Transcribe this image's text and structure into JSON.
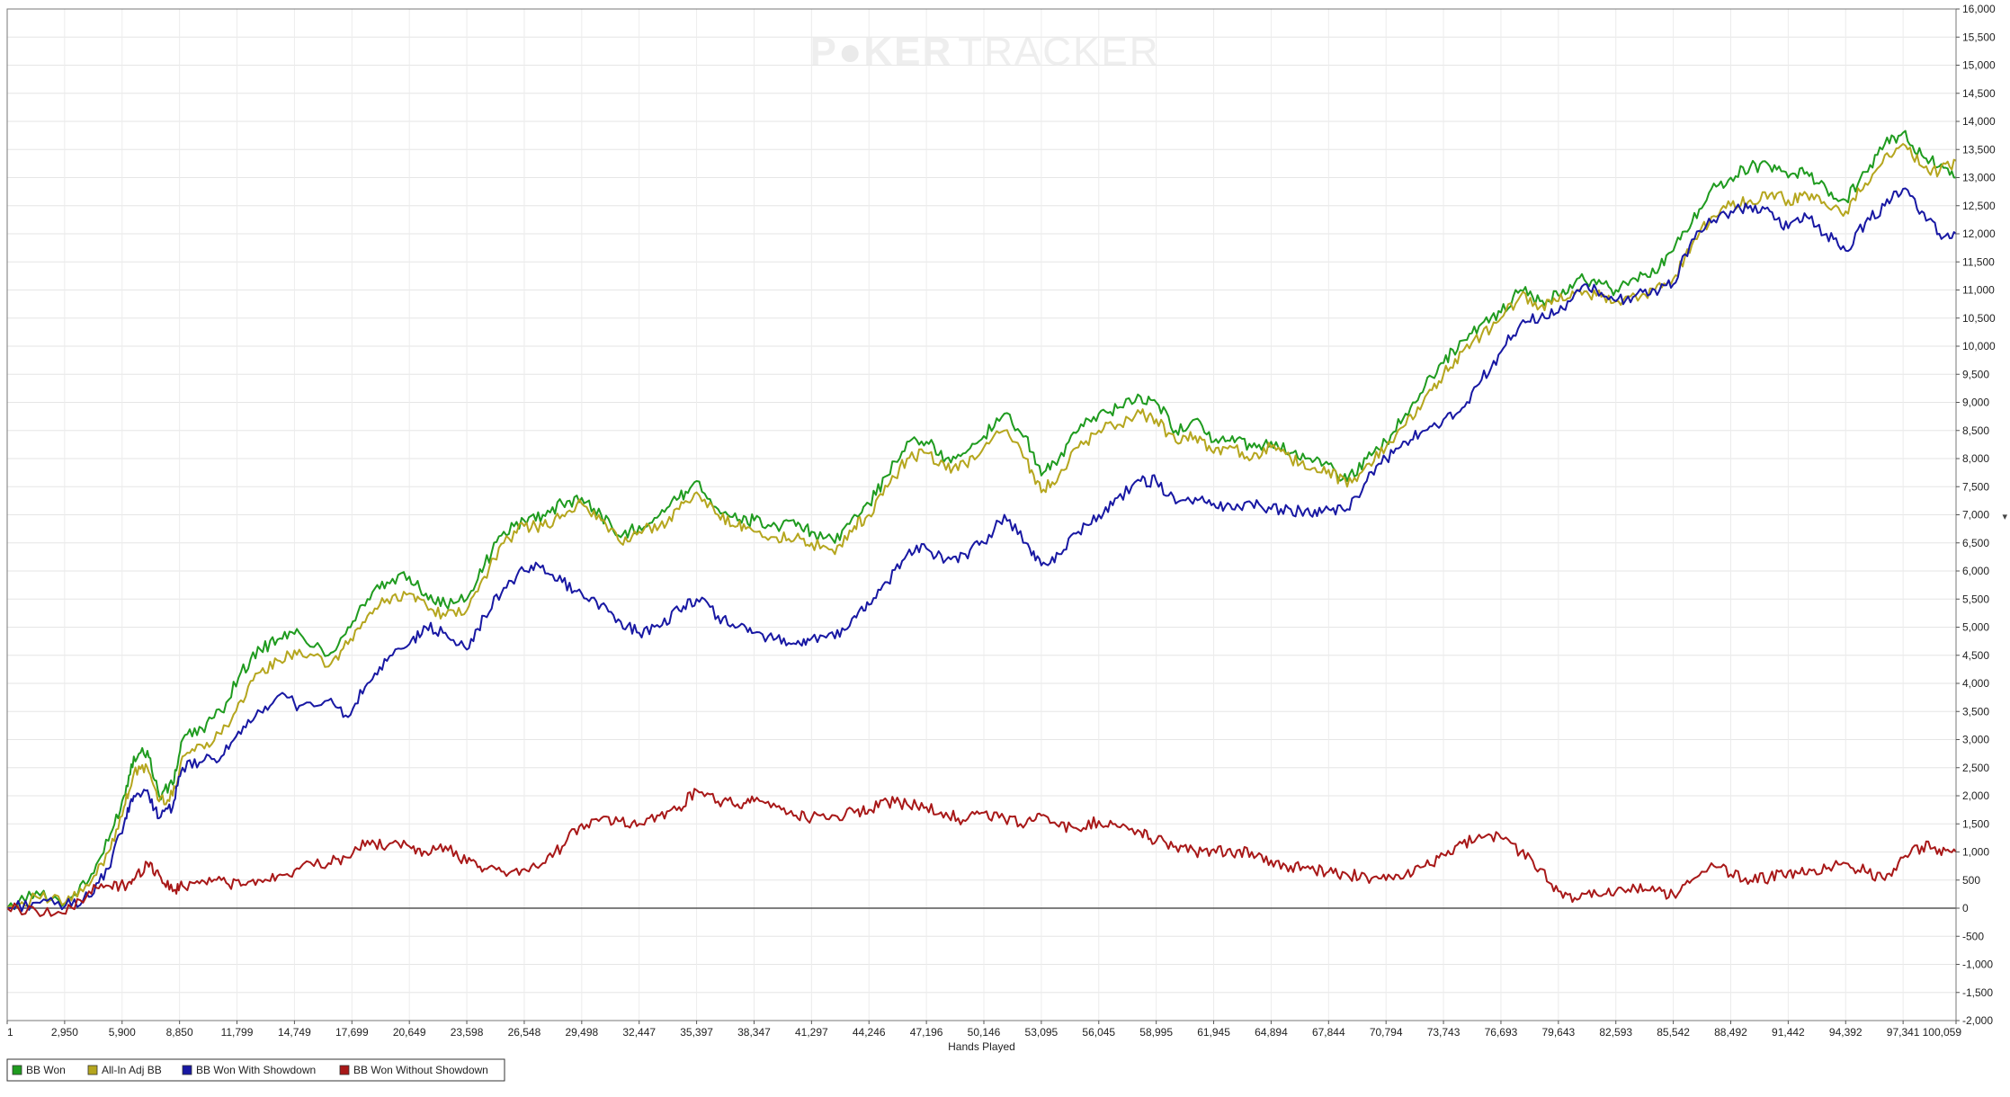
{
  "watermark": {
    "part1": "P",
    "part2": "KER",
    "part3": "TRACKER"
  },
  "chart_data": {
    "type": "line",
    "xlabel": "Hands Played",
    "ylabel": "",
    "xlim": [
      1,
      100059
    ],
    "ylim": [
      -2000,
      16000
    ],
    "y_ticks": [
      -2000,
      -1500,
      -1000,
      -500,
      0,
      500,
      1000,
      1500,
      2000,
      2500,
      3000,
      3500,
      4000,
      4500,
      5000,
      5500,
      6000,
      6500,
      7000,
      7500,
      8000,
      8500,
      9000,
      9500,
      10000,
      10500,
      11000,
      11500,
      12000,
      12500,
      13000,
      13500,
      14000,
      14500,
      15000,
      15500,
      16000
    ],
    "y_tick_labels": [
      "-2,000",
      "-1,500",
      "-1,000",
      "-500",
      "0",
      "500",
      "1,000",
      "1,500",
      "2,000",
      "2,500",
      "3,000",
      "3,500",
      "4,000",
      "4,500",
      "5,000",
      "5,500",
      "6,000",
      "6,500",
      "7,000",
      "7,500",
      "8,000",
      "8,500",
      "9,000",
      "9,500",
      "10,000",
      "10,500",
      "11,000",
      "11,500",
      "12,000",
      "12,500",
      "13,000",
      "13,500",
      "14,000",
      "14,500",
      "15,000",
      "15,500",
      "16,000"
    ],
    "x_ticks": [
      1,
      2950,
      5900,
      8850,
      11799,
      14749,
      17699,
      20649,
      23598,
      26548,
      29498,
      32447,
      35397,
      38347,
      41297,
      44246,
      47196,
      50146,
      53095,
      56045,
      58995,
      61945,
      64894,
      67844,
      70794,
      73743,
      76693,
      79643,
      82593,
      85542,
      88492,
      91442,
      94392,
      97341,
      100059
    ],
    "x_tick_labels": [
      "1",
      "2,950",
      "5,900",
      "8,850",
      "11,799",
      "14,749",
      "17,699",
      "20,649",
      "23,598",
      "26,548",
      "29,498",
      "32,447",
      "35,397",
      "38,347",
      "41,297",
      "44,246",
      "47,196",
      "50,146",
      "53,095",
      "56,045",
      "58,995",
      "61,945",
      "64,894",
      "67,844",
      "70,794",
      "73,743",
      "76,693",
      "79,643",
      "82,593",
      "85,542",
      "88,492",
      "91,442",
      "94,392",
      "97,341",
      "100,059"
    ],
    "grid": true,
    "legend_position": "bottom-left",
    "series": [
      {
        "name": "BB Won",
        "color": "#1f9b1f",
        "x": [
          1,
          1500,
          3000,
          4200,
          5200,
          6000,
          6500,
          7200,
          7800,
          8500,
          9000,
          10000,
          11000,
          12000,
          13000,
          14000,
          15000,
          16500,
          17500,
          18500,
          19500,
          20649,
          21500,
          22500,
          23598,
          24500,
          25500,
          26548,
          27500,
          28500,
          29498,
          30500,
          31500,
          32447,
          33500,
          34500,
          35397,
          36500,
          37500,
          38347,
          39500,
          40500,
          41297,
          42500,
          43500,
          44246,
          45200,
          46200,
          47196,
          48200,
          49200,
          50146,
          51200,
          52300,
          53095,
          54000,
          55000,
          56045,
          57000,
          58200,
          58995,
          60000,
          61000,
          61945,
          62900,
          63900,
          64894,
          65900,
          66900,
          67844,
          68800,
          69800,
          70794,
          71800,
          72800,
          73743,
          74700,
          75700,
          76693,
          77700,
          78700,
          79643,
          80600,
          81600,
          82593,
          83600,
          84600,
          85542,
          86500,
          87500,
          88492,
          89500,
          90500,
          91442,
          92400,
          93400,
          94392,
          95400,
          96400,
          97341,
          98300,
          99200,
          100059
        ],
        "y": [
          0,
          300,
          100,
          500,
          1200,
          2000,
          2700,
          2800,
          2000,
          2200,
          3000,
          3200,
          3500,
          4200,
          4600,
          4800,
          4900,
          4500,
          5000,
          5500,
          5800,
          5900,
          5600,
          5400,
          5500,
          6100,
          6700,
          6900,
          7000,
          7200,
          7300,
          7000,
          6600,
          6800,
          7000,
          7300,
          7600,
          7100,
          6900,
          6900,
          6800,
          6800,
          6700,
          6500,
          7000,
          7200,
          7700,
          8300,
          8300,
          8000,
          8100,
          8400,
          8800,
          8400,
          7700,
          8000,
          8500,
          8800,
          8900,
          9100,
          9000,
          8500,
          8700,
          8300,
          8400,
          8200,
          8300,
          8100,
          8000,
          7900,
          7600,
          8000,
          8300,
          8800,
          9300,
          9700,
          10100,
          10400,
          10600,
          11000,
          10800,
          10900,
          11200,
          11100,
          11000,
          11200,
          11300,
          11700,
          12200,
          12800,
          13000,
          13200,
          13200,
          13000,
          13100,
          12800,
          12600,
          13100,
          13600,
          13800,
          13400,
          13200,
          13000
        ]
      },
      {
        "name": "All-In Adj BB",
        "color": "#b5a61e",
        "x": [
          1,
          1500,
          3000,
          4200,
          5200,
          6000,
          6500,
          7200,
          7800,
          8500,
          9000,
          10000,
          11000,
          12000,
          13000,
          14000,
          15000,
          16500,
          17500,
          18500,
          19500,
          20649,
          21500,
          22500,
          23598,
          24500,
          25500,
          26548,
          27500,
          28500,
          29498,
          30500,
          31500,
          32447,
          33500,
          34500,
          35397,
          36500,
          37500,
          38347,
          39500,
          40500,
          41297,
          42500,
          43500,
          44246,
          45200,
          46200,
          47196,
          48200,
          49200,
          50146,
          51200,
          52300,
          53095,
          54000,
          55000,
          56045,
          57000,
          58200,
          58995,
          60000,
          61000,
          61945,
          62900,
          63900,
          64894,
          65900,
          66900,
          67844,
          68800,
          69800,
          70794,
          71800,
          72800,
          73743,
          74700,
          75700,
          76693,
          77700,
          78700,
          79643,
          80600,
          81600,
          82593,
          83600,
          84600,
          85542,
          86500,
          87500,
          88492,
          89500,
          90500,
          91442,
          92400,
          93400,
          94392,
          95400,
          96400,
          97341,
          98300,
          99200,
          100059
        ],
        "y": [
          0,
          200,
          100,
          400,
          1000,
          1800,
          2400,
          2500,
          1900,
          2000,
          2700,
          2900,
          3100,
          3700,
          4200,
          4400,
          4600,
          4300,
          4700,
          5200,
          5500,
          5600,
          5400,
          5200,
          5300,
          5900,
          6500,
          6800,
          6800,
          7000,
          7200,
          6900,
          6500,
          6700,
          6800,
          7100,
          7400,
          7000,
          6800,
          6700,
          6600,
          6600,
          6500,
          6300,
          6800,
          7000,
          7500,
          8000,
          8100,
          7800,
          7900,
          8200,
          8500,
          8000,
          7400,
          7700,
          8200,
          8500,
          8600,
          8800,
          8700,
          8300,
          8400,
          8100,
          8200,
          8000,
          8200,
          8000,
          7800,
          7800,
          7500,
          7900,
          8200,
          8600,
          9100,
          9500,
          9900,
          10200,
          10500,
          10900,
          10700,
          10800,
          11000,
          10900,
          10800,
          10900,
          11000,
          11200,
          11800,
          12300,
          12500,
          12600,
          12700,
          12600,
          12700,
          12500,
          12400,
          12900,
          13400,
          13600,
          13200,
          13100,
          13300
        ]
      },
      {
        "name": "BB Won With Showdown",
        "color": "#1818a3",
        "x": [
          1,
          1500,
          3000,
          4200,
          5200,
          6000,
          6500,
          7200,
          7800,
          8500,
          9000,
          10000,
          11000,
          12000,
          13000,
          14000,
          15000,
          16500,
          17500,
          18500,
          19500,
          20649,
          21500,
          22500,
          23598,
          24500,
          25500,
          26548,
          27500,
          28500,
          29498,
          30500,
          31500,
          32447,
          33500,
          34500,
          35397,
          36500,
          37500,
          38347,
          39500,
          40500,
          41297,
          42500,
          43500,
          44246,
          45200,
          46200,
          47196,
          48200,
          49200,
          50146,
          51200,
          52300,
          53095,
          54000,
          55000,
          56045,
          57000,
          58200,
          58995,
          60000,
          61000,
          61945,
          62900,
          63900,
          64894,
          65900,
          66900,
          67844,
          68800,
          69800,
          70794,
          71800,
          72800,
          73743,
          74700,
          75700,
          76693,
          77700,
          78700,
          79643,
          80600,
          81600,
          82593,
          83600,
          84600,
          85542,
          86500,
          87500,
          88492,
          89500,
          90500,
          91442,
          92400,
          93400,
          94392,
          95400,
          96400,
          97341,
          98300,
          99200,
          100059
        ],
        "y": [
          0,
          100,
          50,
          200,
          700,
          1500,
          2000,
          2100,
          1600,
          1800,
          2500,
          2600,
          2700,
          3100,
          3500,
          3800,
          3600,
          3700,
          3400,
          4000,
          4400,
          4700,
          5000,
          4900,
          4600,
          5200,
          5700,
          6000,
          6100,
          5800,
          5600,
          5400,
          5100,
          4900,
          5000,
          5300,
          5500,
          5200,
          5000,
          4900,
          4800,
          4700,
          4800,
          4800,
          5200,
          5400,
          5800,
          6300,
          6400,
          6200,
          6300,
          6500,
          7000,
          6500,
          6100,
          6300,
          6700,
          7000,
          7300,
          7600,
          7600,
          7200,
          7300,
          7200,
          7100,
          7200,
          7100,
          7100,
          7000,
          7100,
          7100,
          7600,
          8000,
          8300,
          8500,
          8700,
          8900,
          9400,
          9900,
          10400,
          10500,
          10600,
          11000,
          11000,
          10800,
          10900,
          11000,
          11100,
          11900,
          12200,
          12400,
          12500,
          12400,
          12100,
          12300,
          12000,
          11700,
          12200,
          12500,
          12800,
          12400,
          12000,
          12000
        ]
      },
      {
        "name": "BB Won Without Showdown",
        "color": "#a81818",
        "x": [
          1,
          1500,
          3000,
          4200,
          5200,
          6000,
          6500,
          7200,
          7800,
          8500,
          9000,
          10000,
          11000,
          12000,
          13000,
          14000,
          15000,
          16500,
          17500,
          18500,
          19500,
          20649,
          21500,
          22500,
          23598,
          24500,
          25500,
          26548,
          27500,
          28500,
          29498,
          30500,
          31500,
          32447,
          33500,
          34500,
          35397,
          36500,
          37500,
          38347,
          39500,
          40500,
          41297,
          42500,
          43500,
          44246,
          45200,
          46200,
          47196,
          48200,
          49200,
          50146,
          51200,
          52300,
          53095,
          54000,
          55000,
          56045,
          57000,
          58200,
          58995,
          60000,
          61000,
          61945,
          62900,
          63900,
          64894,
          65900,
          66900,
          67844,
          68800,
          69800,
          70794,
          71800,
          72800,
          73743,
          74700,
          75700,
          76693,
          77700,
          78700,
          79643,
          80600,
          81600,
          82593,
          83600,
          84600,
          85542,
          86500,
          87500,
          88492,
          89500,
          90500,
          91442,
          92400,
          93400,
          94392,
          95400,
          96400,
          97341,
          98300,
          99200,
          100059
        ],
        "y": [
          0,
          -50,
          -100,
          300,
          400,
          400,
          500,
          800,
          600,
          300,
          400,
          500,
          500,
          400,
          500,
          600,
          700,
          800,
          900,
          1200,
          1100,
          1100,
          1000,
          1100,
          800,
          700,
          650,
          700,
          800,
          1100,
          1500,
          1600,
          1550,
          1500,
          1650,
          1800,
          2100,
          1900,
          1850,
          1900,
          1800,
          1650,
          1600,
          1650,
          1700,
          1750,
          1900,
          1850,
          1800,
          1700,
          1550,
          1700,
          1600,
          1500,
          1650,
          1450,
          1400,
          1550,
          1450,
          1350,
          1200,
          1100,
          1000,
          1050,
          950,
          1000,
          850,
          750,
          700,
          650,
          600,
          550,
          500,
          600,
          750,
          950,
          1150,
          1250,
          1250,
          1000,
          700,
          300,
          150,
          250,
          300,
          350,
          300,
          250,
          500,
          800,
          600,
          500,
          550,
          650,
          600,
          700,
          800,
          650,
          500,
          900,
          1100,
          1050,
          1000
        ]
      }
    ]
  }
}
